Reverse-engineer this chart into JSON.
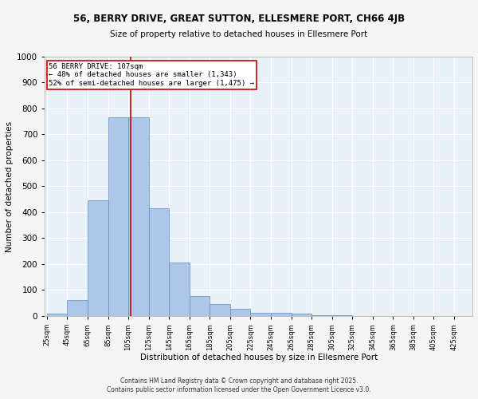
{
  "title1": "56, BERRY DRIVE, GREAT SUTTON, ELLESMERE PORT, CH66 4JB",
  "title2": "Size of property relative to detached houses in Ellesmere Port",
  "xlabel": "Distribution of detached houses by size in Ellesmere Port",
  "ylabel": "Number of detached properties",
  "bin_edges": [
    25,
    45,
    65,
    85,
    105,
    125,
    145,
    165,
    185,
    205,
    225,
    245,
    265,
    285,
    305,
    325,
    345,
    365,
    385,
    405,
    425
  ],
  "bar_heights": [
    8,
    63,
    445,
    765,
    765,
    415,
    205,
    78,
    45,
    28,
    12,
    12,
    8,
    3,
    2,
    1,
    1,
    0,
    0,
    0
  ],
  "bar_color": "#aec6e8",
  "bar_edgecolor": "#5a8fc2",
  "property_line_x": 107,
  "annotation_line1": "56 BERRY DRIVE: 107sqm",
  "annotation_line2": "← 48% of detached houses are smaller (1,343)",
  "annotation_line3": "52% of semi-detached houses are larger (1,475) →",
  "annotation_box_color": "#ffffff",
  "annotation_box_edgecolor": "#cc0000",
  "ylim": [
    0,
    1000
  ],
  "yticks": [
    0,
    100,
    200,
    300,
    400,
    500,
    600,
    700,
    800,
    900,
    1000
  ],
  "background_color": "#e8f0f8",
  "plot_bg_color": "#dce8f5",
  "grid_color": "#ffffff",
  "footer1": "Contains HM Land Registry data © Crown copyright and database right 2025.",
  "footer2": "Contains public sector information licensed under the Open Government Licence v3.0.",
  "line_color": "#cc0000",
  "fig_bg_color": "#f5f5f5"
}
